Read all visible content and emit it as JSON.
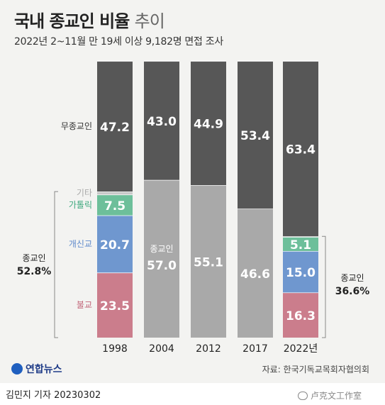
{
  "header": {
    "title_main": "국내 종교인 비율",
    "title_light": "추이",
    "subtitle": "2022년 2~11월 만 19세 이상 9,182명 면접 조사"
  },
  "footer": {
    "logo": "연합뉴스",
    "source": "자료: 한국기독교목회자협의회",
    "byline": "김민지 기자 20230302",
    "watermark": "卢克文工作室"
  },
  "colors": {
    "none": "#575757",
    "religious": "#a9a9a9",
    "other": "#c8c8c8",
    "catholic": "#6dbf9a",
    "protestant": "#6f97cf",
    "buddhist": "#cb7d8c"
  },
  "chart_data": {
    "type": "bar",
    "stacked": true,
    "categories": [
      "1998",
      "2004",
      "2012",
      "2017",
      "2022년"
    ],
    "series": [
      {
        "name": "불교",
        "values": [
          23.5,
          null,
          null,
          null,
          16.3
        ],
        "color": "#cb7d8c"
      },
      {
        "name": "개신교",
        "values": [
          20.7,
          null,
          null,
          null,
          15.0
        ],
        "color": "#6f97cf"
      },
      {
        "name": "가톨릭",
        "values": [
          7.5,
          null,
          null,
          null,
          5.1
        ],
        "color": "#6dbf9a"
      },
      {
        "name": "기타",
        "values": [
          1.1,
          null,
          null,
          null,
          0.2
        ],
        "color": "#c8c8c8"
      },
      {
        "name": "종교인",
        "values": [
          null,
          57.0,
          55.1,
          46.6,
          null
        ],
        "color": "#a9a9a9"
      },
      {
        "name": "무종교인",
        "values": [
          47.2,
          43.0,
          44.9,
          53.4,
          63.4
        ],
        "color": "#575757"
      }
    ],
    "value_labels": [
      [
        "23.5",
        "",
        "",
        "",
        "16.3"
      ],
      [
        "20.7",
        "",
        "",
        "",
        "15.0"
      ],
      [
        "7.5",
        "",
        "",
        "",
        "5.1"
      ],
      [
        "",
        "",
        "",
        "",
        ""
      ],
      [
        "",
        "57.0",
        "55.1",
        "46.6",
        ""
      ],
      [
        "47.2",
        "43.0",
        "44.9",
        "53.4",
        "63.4"
      ]
    ],
    "category_labels": [
      "불교",
      "개신교",
      "가톨릭",
      "기타",
      "",
      "무종교인"
    ],
    "inline_label_2004": "종교인",
    "brackets": [
      {
        "label": "종교인",
        "value": "52.8%",
        "side": "left"
      },
      {
        "label": "종교인",
        "value": "36.6%",
        "side": "right"
      }
    ],
    "ylim": [
      0,
      100
    ]
  }
}
